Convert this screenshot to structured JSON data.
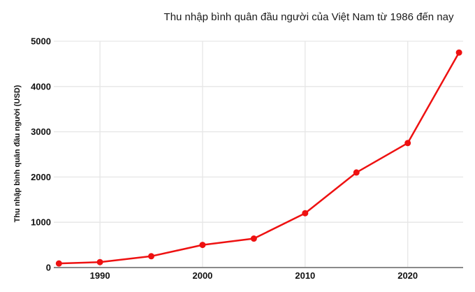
{
  "page": {
    "background": "#ffffff"
  },
  "chart_data": {
    "type": "line",
    "title": "Thu nhập bình quân đầu người của Việt Nam từ 1986 đến nay",
    "ylabel": "Thu nhập bình quân đầu người (USD)",
    "xlabel": "",
    "x": [
      1986,
      1990,
      1995,
      2000,
      2005,
      2010,
      2015,
      2020,
      2025
    ],
    "values": [
      90,
      120,
      250,
      500,
      640,
      1200,
      2100,
      2750,
      4750
    ],
    "xticks": [
      "1990",
      "2000",
      "2010",
      "2020"
    ],
    "xtick_years": [
      1990,
      2000,
      2010,
      2020
    ],
    "yticks": [
      "0",
      "1000",
      "2000",
      "3000",
      "4000",
      "5000"
    ],
    "ytick_values": [
      0,
      1000,
      2000,
      3000,
      4000,
      5000
    ],
    "xlim": [
      1985.5,
      2025.4
    ],
    "ylim": [
      0,
      5000
    ],
    "grid": true,
    "legend": false,
    "marker": "circle",
    "line_color": "#ee1111",
    "grid_color": "#e6e6e6",
    "axis_color": "#8a8a8a",
    "tick_label_color": "#111111",
    "title_color": "#1a1a1a"
  }
}
